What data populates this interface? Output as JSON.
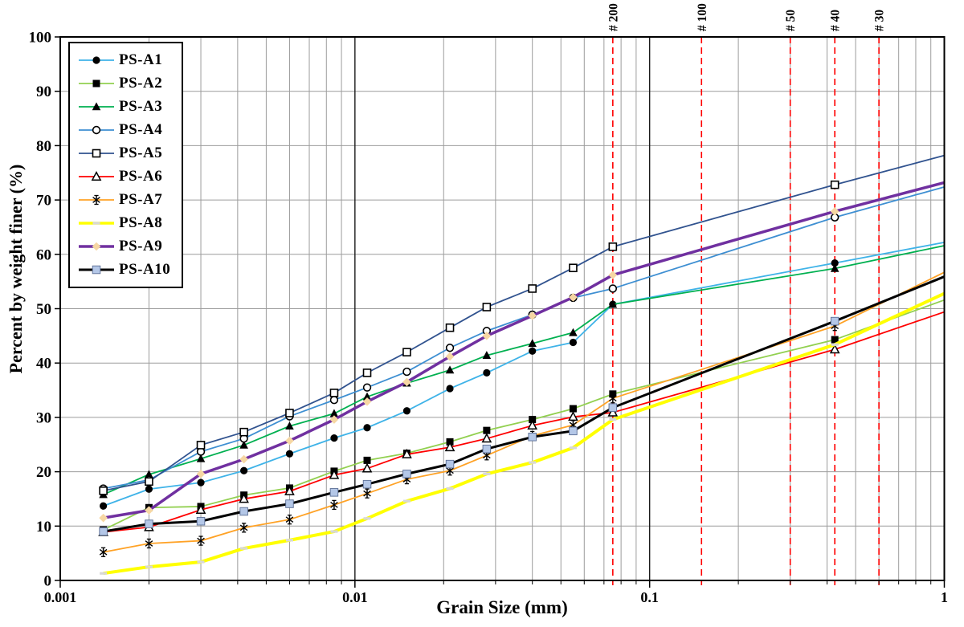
{
  "page": {
    "background": "#FFFFFF"
  },
  "chart_data": {
    "type": "line",
    "title": "",
    "xlabel": "Grain Size  (mm)",
    "ylabel": "Percent by weight finer (%)",
    "x_scale": "log",
    "xlim": [
      0.001,
      1
    ],
    "ylim": [
      0,
      100
    ],
    "x_ticks": [
      0.001,
      0.01,
      0.1,
      1
    ],
    "x_tick_labels": [
      "0.001",
      "0.01",
      "0.1",
      "1"
    ],
    "y_ticks": [
      0,
      10,
      20,
      30,
      40,
      50,
      60,
      70,
      80,
      90,
      100
    ],
    "grid": "on",
    "legend_position": "top-left-inside",
    "sieve_line_color": "#FF0000",
    "sieve_lines": [
      {
        "label": "# 200",
        "mm": 0.075
      },
      {
        "label": "# 100",
        "mm": 0.15
      },
      {
        "label": "# 50",
        "mm": 0.3
      },
      {
        "label": "# 40",
        "mm": 0.425
      },
      {
        "label": "# 30",
        "mm": 0.6
      }
    ],
    "x": [
      0.0014,
      0.002,
      0.003,
      0.0042,
      0.006,
      0.0085,
      0.011,
      0.015,
      0.021,
      0.028,
      0.04,
      0.055,
      0.075,
      0.425,
      1.0
    ],
    "series": [
      {
        "name": "PS-A1",
        "color": "#3FB3E8",
        "marker": "circle-filled",
        "line_width": 1.8,
        "values": [
          13.7,
          16.8,
          18.0,
          20.2,
          23.3,
          26.2,
          28.1,
          31.2,
          35.3,
          38.2,
          42.2,
          43.8,
          50.8,
          58.4,
          62.2
        ]
      },
      {
        "name": "PS-A2",
        "color": "#92D050",
        "marker": "square-filled",
        "line_width": 1.8,
        "values": [
          9.3,
          13.4,
          13.6,
          15.7,
          17.0,
          20.1,
          22.1,
          23.4,
          25.5,
          27.6,
          29.6,
          31.6,
          34.3,
          44.3,
          51.6
        ]
      },
      {
        "name": "PS-A3",
        "color": "#00B050",
        "marker": "triangle-filled",
        "line_width": 1.8,
        "values": [
          15.8,
          19.5,
          22.4,
          24.9,
          28.4,
          30.7,
          33.8,
          36.3,
          38.7,
          41.4,
          43.6,
          45.6,
          50.8,
          57.4,
          61.6
        ]
      },
      {
        "name": "PS-A4",
        "color": "#3E8FD2",
        "marker": "circle-open",
        "line_width": 1.8,
        "values": [
          16.9,
          18.5,
          23.7,
          26.1,
          30.2,
          33.2,
          35.5,
          38.4,
          42.8,
          45.9,
          48.9,
          52.0,
          53.7,
          66.8,
          72.4
        ]
      },
      {
        "name": "PS-A5",
        "color": "#31538F",
        "marker": "square-open",
        "line_width": 1.8,
        "values": [
          16.5,
          18.2,
          24.9,
          27.3,
          30.8,
          34.5,
          38.2,
          42.0,
          46.5,
          50.3,
          53.7,
          57.5,
          61.4,
          72.8,
          78.2
        ]
      },
      {
        "name": "PS-A6",
        "color": "#FF0000",
        "marker": "triangle-open",
        "line_width": 1.8,
        "values": [
          8.9,
          9.8,
          13.0,
          15.0,
          16.4,
          19.4,
          20.6,
          23.2,
          24.5,
          26.1,
          28.5,
          30.1,
          30.9,
          42.5,
          49.4
        ]
      },
      {
        "name": "PS-A7",
        "color": "#FFA226",
        "marker": "asterisk",
        "line_width": 1.8,
        "values": [
          5.2,
          6.8,
          7.3,
          9.7,
          11.2,
          13.9,
          16.0,
          18.6,
          20.2,
          23.0,
          26.6,
          28.6,
          33.5,
          46.8,
          56.7
        ]
      },
      {
        "name": "PS-A8",
        "color": "#FFFF00",
        "marker": "dash-light",
        "line_width": 4,
        "values": [
          1.3,
          2.5,
          3.4,
          5.9,
          7.4,
          9.0,
          11.4,
          14.6,
          16.9,
          19.6,
          21.7,
          24.4,
          29.6,
          43.4,
          52.8
        ]
      },
      {
        "name": "PS-A9",
        "color": "#7030A0",
        "marker": "diamond-light",
        "line_width": 3.5,
        "values": [
          11.5,
          12.9,
          19.6,
          22.3,
          25.7,
          29.6,
          32.9,
          36.5,
          41.2,
          45.0,
          48.7,
          52.1,
          56.2,
          67.9,
          73.2
        ]
      },
      {
        "name": "PS-A10",
        "color": "#000000",
        "marker": "square-light",
        "line_width": 3,
        "values": [
          9.0,
          10.4,
          10.9,
          12.7,
          14.1,
          16.2,
          17.7,
          19.6,
          21.4,
          24.2,
          26.4,
          27.5,
          31.8,
          47.7,
          55.9
        ]
      }
    ]
  }
}
